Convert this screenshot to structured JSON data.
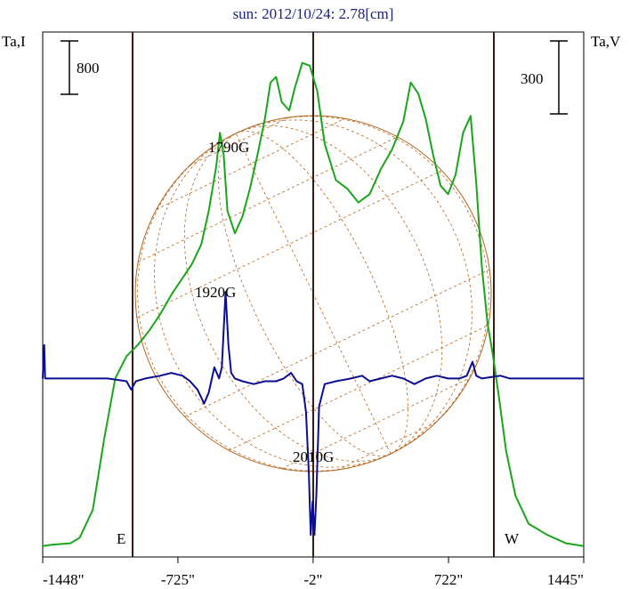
{
  "chart_data": {
    "type": "line",
    "title": "sun: 2012/10/24: 2.78[cm]",
    "y_left_label": "Ta,I",
    "y_right_label": "Ta,V",
    "left_scale_bar": "800",
    "right_scale_bar": "300",
    "x_ticks": [
      {
        "value": -1448,
        "label": "-1448\""
      },
      {
        "value": -725,
        "label": "-725\""
      },
      {
        "value": -2,
        "label": "-2\""
      },
      {
        "value": 722,
        "label": "722\""
      },
      {
        "value": 1445,
        "label": "1445\""
      }
    ],
    "xlim": [
      -1448,
      1445
    ],
    "limb_markers": [
      {
        "x": -975,
        "label": "E"
      },
      {
        "x": 975,
        "label": "W"
      }
    ],
    "center_line_x": -2,
    "annotations": [
      {
        "text": "1790G"
      },
      {
        "text": "1920G"
      },
      {
        "text": "2010G"
      }
    ],
    "series": [
      {
        "color": "#1aa51a",
        "points": [
          [
            -1448,
            0.02
          ],
          [
            -1400,
            0.025
          ],
          [
            -1300,
            0.03
          ],
          [
            -1250,
            0.05
          ],
          [
            -1180,
            0.15
          ],
          [
            -1120,
            0.4
          ],
          [
            -1060,
            0.62
          ],
          [
            -1000,
            0.7
          ],
          [
            -940,
            0.74
          ],
          [
            -880,
            0.79
          ],
          [
            -820,
            0.85
          ],
          [
            -760,
            0.92
          ],
          [
            -700,
            0.98
          ],
          [
            -650,
            1.03
          ],
          [
            -600,
            1.1
          ],
          [
            -560,
            1.22
          ],
          [
            -520,
            1.38
          ],
          [
            -500,
            1.5
          ],
          [
            -480,
            1.42
          ],
          [
            -460,
            1.22
          ],
          [
            -420,
            1.14
          ],
          [
            -380,
            1.2
          ],
          [
            -340,
            1.3
          ],
          [
            -300,
            1.42
          ],
          [
            -260,
            1.55
          ],
          [
            -230,
            1.68
          ],
          [
            -200,
            1.7
          ],
          [
            -170,
            1.61
          ],
          [
            -130,
            1.58
          ],
          [
            -100,
            1.66
          ],
          [
            -60,
            1.75
          ],
          [
            -20,
            1.74
          ],
          [
            20,
            1.65
          ],
          [
            60,
            1.46
          ],
          [
            120,
            1.33
          ],
          [
            180,
            1.3
          ],
          [
            240,
            1.25
          ],
          [
            300,
            1.28
          ],
          [
            360,
            1.37
          ],
          [
            420,
            1.44
          ],
          [
            480,
            1.54
          ],
          [
            520,
            1.68
          ],
          [
            560,
            1.64
          ],
          [
            600,
            1.55
          ],
          [
            640,
            1.42
          ],
          [
            680,
            1.31
          ],
          [
            720,
            1.28
          ],
          [
            760,
            1.35
          ],
          [
            800,
            1.5
          ],
          [
            840,
            1.56
          ],
          [
            870,
            1.32
          ],
          [
            900,
            1.02
          ],
          [
            930,
            0.82
          ],
          [
            960,
            0.7
          ],
          [
            990,
            0.56
          ],
          [
            1030,
            0.36
          ],
          [
            1080,
            0.2
          ],
          [
            1150,
            0.1
          ],
          [
            1250,
            0.06
          ],
          [
            1350,
            0.03
          ],
          [
            1445,
            0.02
          ]
        ]
      },
      {
        "color": "#0b0f8f",
        "points": [
          [
            -1448,
            0.62
          ],
          [
            -1440,
            0.74
          ],
          [
            -1435,
            0.62
          ],
          [
            -1300,
            0.62
          ],
          [
            -1100,
            0.62
          ],
          [
            -1000,
            0.61
          ],
          [
            -975,
            0.58
          ],
          [
            -950,
            0.61
          ],
          [
            -900,
            0.62
          ],
          [
            -820,
            0.63
          ],
          [
            -760,
            0.64
          ],
          [
            -700,
            0.63
          ],
          [
            -660,
            0.61
          ],
          [
            -620,
            0.58
          ],
          [
            -585,
            0.53
          ],
          [
            -560,
            0.57
          ],
          [
            -530,
            0.66
          ],
          [
            -505,
            0.62
          ],
          [
            -490,
            0.66
          ],
          [
            -470,
            0.93
          ],
          [
            -455,
            0.74
          ],
          [
            -440,
            0.64
          ],
          [
            -420,
            0.62
          ],
          [
            -380,
            0.61
          ],
          [
            -320,
            0.6
          ],
          [
            -260,
            0.61
          ],
          [
            -200,
            0.61
          ],
          [
            -160,
            0.62
          ],
          [
            -120,
            0.64
          ],
          [
            -90,
            0.61
          ],
          [
            -60,
            0.6
          ],
          [
            -40,
            0.5
          ],
          [
            -25,
            0.28
          ],
          [
            -15,
            0.06
          ],
          [
            -5,
            0.18
          ],
          [
            5,
            0.06
          ],
          [
            15,
            0.2
          ],
          [
            30,
            0.52
          ],
          [
            60,
            0.6
          ],
          [
            120,
            0.61
          ],
          [
            200,
            0.62
          ],
          [
            260,
            0.63
          ],
          [
            300,
            0.61
          ],
          [
            360,
            0.62
          ],
          [
            420,
            0.63
          ],
          [
            480,
            0.62
          ],
          [
            540,
            0.6
          ],
          [
            600,
            0.62
          ],
          [
            660,
            0.63
          ],
          [
            720,
            0.62
          ],
          [
            780,
            0.62
          ],
          [
            820,
            0.63
          ],
          [
            850,
            0.68
          ],
          [
            870,
            0.63
          ],
          [
            900,
            0.62
          ],
          [
            1000,
            0.63
          ],
          [
            1050,
            0.62
          ],
          [
            1100,
            0.62
          ],
          [
            1300,
            0.62
          ],
          [
            1445,
            0.62
          ]
        ]
      }
    ]
  }
}
